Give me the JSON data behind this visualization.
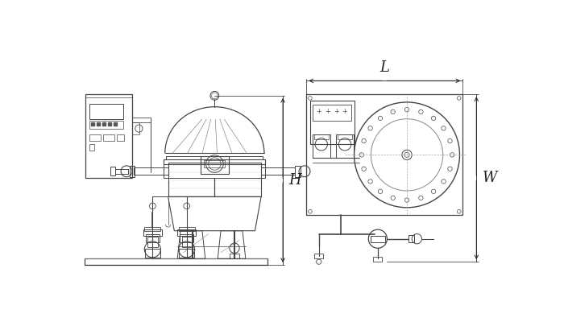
{
  "background_color": "#ffffff",
  "line_color": "#444444",
  "dim_line_color": "#222222",
  "H_label": "H",
  "L_label": "L",
  "W_label": "W",
  "fig_width": 7.0,
  "fig_height": 4.0,
  "dpi": 100
}
